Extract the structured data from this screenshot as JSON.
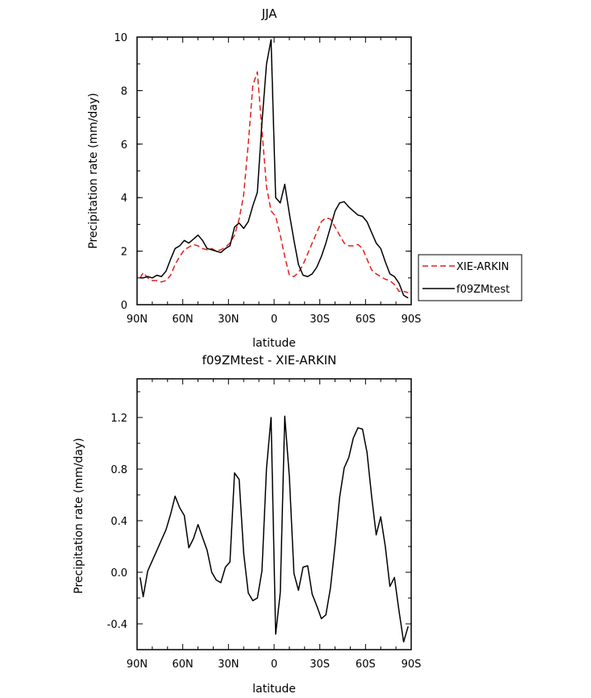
{
  "chart_data": [
    {
      "type": "line",
      "title": "JJA",
      "xlabel": "latitude",
      "ylabel": "Precipitation rate (mm/day)",
      "xlim": [
        90,
        -90
      ],
      "ylim": [
        0,
        10
      ],
      "xticks": [
        90,
        60,
        30,
        0,
        -30,
        -60,
        -90
      ],
      "xtick_labels": [
        "90N",
        "60N",
        "30N",
        "0",
        "30S",
        "60S",
        "90S"
      ],
      "yticks": [
        0,
        2,
        4,
        6,
        8,
        10
      ],
      "ytick_labels": [
        "0",
        "2",
        "4",
        "6",
        "8",
        "10"
      ],
      "legend": {
        "position": "right",
        "entries": [
          "XIE-ARKIN",
          "f09ZMtest"
        ]
      },
      "series": [
        {
          "name": "XIE-ARKIN",
          "color": "#e0201b",
          "dash": "dashed",
          "x": [
            88,
            86,
            83,
            80,
            77,
            74,
            71,
            68,
            65,
            62,
            59,
            56,
            53,
            50,
            47,
            44,
            41,
            38,
            35,
            32,
            29,
            26,
            23,
            20,
            17,
            14,
            11,
            8,
            5,
            2,
            -1,
            -4,
            -7,
            -10,
            -13,
            -16,
            -19,
            -22,
            -25,
            -28,
            -31,
            -34,
            -37,
            -40,
            -43,
            -46,
            -49,
            -52,
            -55,
            -58,
            -61,
            -64,
            -67,
            -70,
            -73,
            -76,
            -79,
            -82,
            -85,
            -88
          ],
          "y": [
            1.0,
            1.2,
            1.0,
            0.9,
            0.9,
            0.85,
            0.9,
            1.1,
            1.5,
            1.8,
            2.05,
            2.15,
            2.25,
            2.2,
            2.1,
            2.05,
            2.1,
            2.0,
            2.05,
            2.15,
            2.3,
            2.6,
            3.2,
            4.1,
            6.0,
            8.2,
            8.7,
            6.5,
            4.4,
            3.5,
            3.3,
            2.6,
            1.8,
            1.1,
            1.05,
            1.2,
            1.5,
            1.9,
            2.3,
            2.7,
            3.1,
            3.25,
            3.2,
            2.9,
            2.6,
            2.3,
            2.2,
            2.2,
            2.25,
            2.1,
            1.7,
            1.3,
            1.15,
            1.05,
            0.95,
            0.9,
            0.75,
            0.5,
            0.5,
            0.45
          ]
        },
        {
          "name": "f09ZMtest",
          "color": "#000000",
          "dash": "solid",
          "x": [
            88,
            86,
            83,
            80,
            77,
            74,
            71,
            68,
            65,
            62,
            59,
            56,
            53,
            50,
            47,
            44,
            41,
            38,
            35,
            32,
            29,
            26,
            23,
            20,
            17,
            14,
            11,
            8,
            5,
            2,
            -1,
            -4,
            -7,
            -10,
            -13,
            -16,
            -19,
            -22,
            -25,
            -28,
            -31,
            -34,
            -37,
            -40,
            -43,
            -46,
            -49,
            -52,
            -55,
            -58,
            -61,
            -64,
            -67,
            -70,
            -73,
            -76,
            -79,
            -82,
            -85,
            -88
          ],
          "y": [
            1.0,
            1.0,
            1.05,
            1.0,
            1.1,
            1.05,
            1.25,
            1.7,
            2.1,
            2.2,
            2.4,
            2.3,
            2.45,
            2.6,
            2.4,
            2.1,
            2.05,
            2.0,
            1.95,
            2.1,
            2.2,
            2.9,
            3.05,
            2.85,
            3.1,
            3.7,
            4.2,
            6.8,
            9.0,
            9.9,
            4.0,
            3.8,
            4.5,
            3.4,
            2.4,
            1.5,
            1.1,
            1.05,
            1.15,
            1.4,
            1.8,
            2.3,
            2.9,
            3.5,
            3.8,
            3.85,
            3.65,
            3.5,
            3.35,
            3.3,
            3.1,
            2.7,
            2.3,
            2.1,
            1.6,
            1.15,
            1.05,
            0.8,
            0.35,
            0.25
          ]
        }
      ]
    },
    {
      "type": "line",
      "title": "f09ZMtest - XIE-ARKIN",
      "xlabel": "latitude",
      "ylabel": "Precipitation rate (mm/day)",
      "xlim": [
        90,
        -90
      ],
      "ylim": [
        -0.6,
        1.5
      ],
      "xticks": [
        90,
        60,
        30,
        0,
        -30,
        -60,
        -90
      ],
      "xtick_labels": [
        "90N",
        "60N",
        "30N",
        "0",
        "30S",
        "60S",
        "90S"
      ],
      "yticks": [
        -0.4,
        0.0,
        0.4,
        0.8,
        1.2
      ],
      "ytick_labels": [
        "-0.4",
        "0.0",
        "0.4",
        "0.8",
        "1.2"
      ],
      "series": [
        {
          "name": "f09ZMtest - XIE-ARKIN",
          "color": "#000000",
          "dash": "solid",
          "x": [
            88,
            86,
            83,
            80,
            77,
            74,
            71,
            68,
            65,
            62,
            59,
            56,
            53,
            50,
            47,
            44,
            41,
            38,
            35,
            32,
            29,
            26,
            23,
            20,
            17,
            14,
            11,
            8,
            5,
            2,
            -1,
            -4,
            -7,
            -10,
            -13,
            -16,
            -19,
            -22,
            -25,
            -28,
            -31,
            -34,
            -37,
            -40,
            -43,
            -46,
            -49,
            -52,
            -55,
            -58,
            -61,
            -64,
            -67,
            -70,
            -73,
            -76,
            -79,
            -82,
            -85,
            -88
          ],
          "y": [
            -0.04,
            -0.19,
            0.01,
            0.09,
            0.17,
            0.25,
            0.33,
            0.45,
            0.59,
            0.5,
            0.44,
            0.19,
            0.26,
            0.37,
            0.27,
            0.17,
            0.0,
            -0.06,
            -0.08,
            0.04,
            0.08,
            0.77,
            0.72,
            0.15,
            -0.16,
            -0.22,
            -0.2,
            0.01,
            0.81,
            1.2,
            -0.48,
            -0.16,
            1.21,
            0.74,
            -0.01,
            -0.14,
            0.04,
            0.05,
            -0.17,
            -0.26,
            -0.36,
            -0.33,
            -0.12,
            0.21,
            0.58,
            0.81,
            0.89,
            1.04,
            1.12,
            1.11,
            0.93,
            0.59,
            0.29,
            0.43,
            0.2,
            -0.11,
            -0.04,
            -0.3,
            -0.54,
            -0.42
          ]
        }
      ]
    }
  ]
}
